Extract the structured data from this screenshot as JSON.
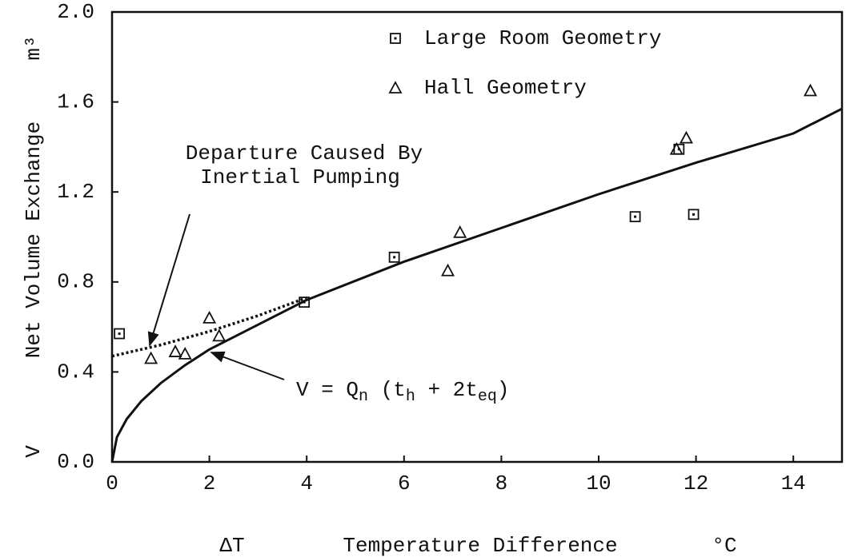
{
  "chart_data": {
    "type": "scatter",
    "xlim": [
      0,
      15
    ],
    "ylim": [
      0,
      2
    ],
    "xticks": [
      0,
      2,
      4,
      6,
      8,
      10,
      12,
      14
    ],
    "yticks": [
      {
        "value": 0,
        "label": "0.0"
      },
      {
        "value": 0.4,
        "label": "0.4"
      },
      {
        "value": 0.8,
        "label": "0.8"
      },
      {
        "value": 1.2,
        "label": "1.2"
      },
      {
        "value": 1.6,
        "label": "1.6"
      },
      {
        "value": 2,
        "label": "2.0"
      }
    ],
    "xlabel": [
      "ΔT",
      "Temperature Difference",
      "°C"
    ],
    "ylabel": [
      "V",
      "Net Volume Exchange",
      "m³"
    ],
    "annotations": {
      "departure": [
        "Departure Caused By",
        "Inertial Pumping"
      ],
      "equation": [
        "V = Q",
        "n",
        " (t",
        "h",
        " + 2t",
        "eq",
        ")"
      ]
    },
    "series": [
      {
        "name": "Large Room Geometry",
        "marker": "square",
        "color": "#111",
        "x": [
          0.15,
          3.95,
          5.8,
          10.75,
          11.95,
          11.65
        ],
        "values": [
          0.57,
          0.71,
          0.91,
          1.09,
          1.1,
          1.39
        ]
      },
      {
        "name": "Hall Geometry",
        "marker": "triangle",
        "color": "#111",
        "x": [
          0.8,
          1.3,
          1.5,
          2.0,
          2.2,
          6.9,
          7.15,
          11.6,
          11.8,
          14.35
        ],
        "values": [
          0.46,
          0.49,
          0.48,
          0.64,
          0.56,
          0.85,
          1.02,
          1.39,
          1.44,
          1.65
        ]
      },
      {
        "marker": "solid",
        "color": "#111",
        "x": [
          0,
          0.1,
          0.3,
          0.6,
          1,
          1.5,
          2,
          3,
          4,
          6,
          8,
          10,
          12,
          14,
          15
        ],
        "values": [
          0,
          0.11,
          0.19,
          0.27,
          0.35,
          0.43,
          0.5,
          0.61,
          0.72,
          0.89,
          1.04,
          1.19,
          1.33,
          1.46,
          1.57
        ]
      },
      {
        "marker": "dotted",
        "color": "#111",
        "x": [
          0,
          1,
          2,
          3,
          4
        ],
        "values": [
          0.47,
          0.52,
          0.58,
          0.65,
          0.73
        ]
      }
    ]
  }
}
